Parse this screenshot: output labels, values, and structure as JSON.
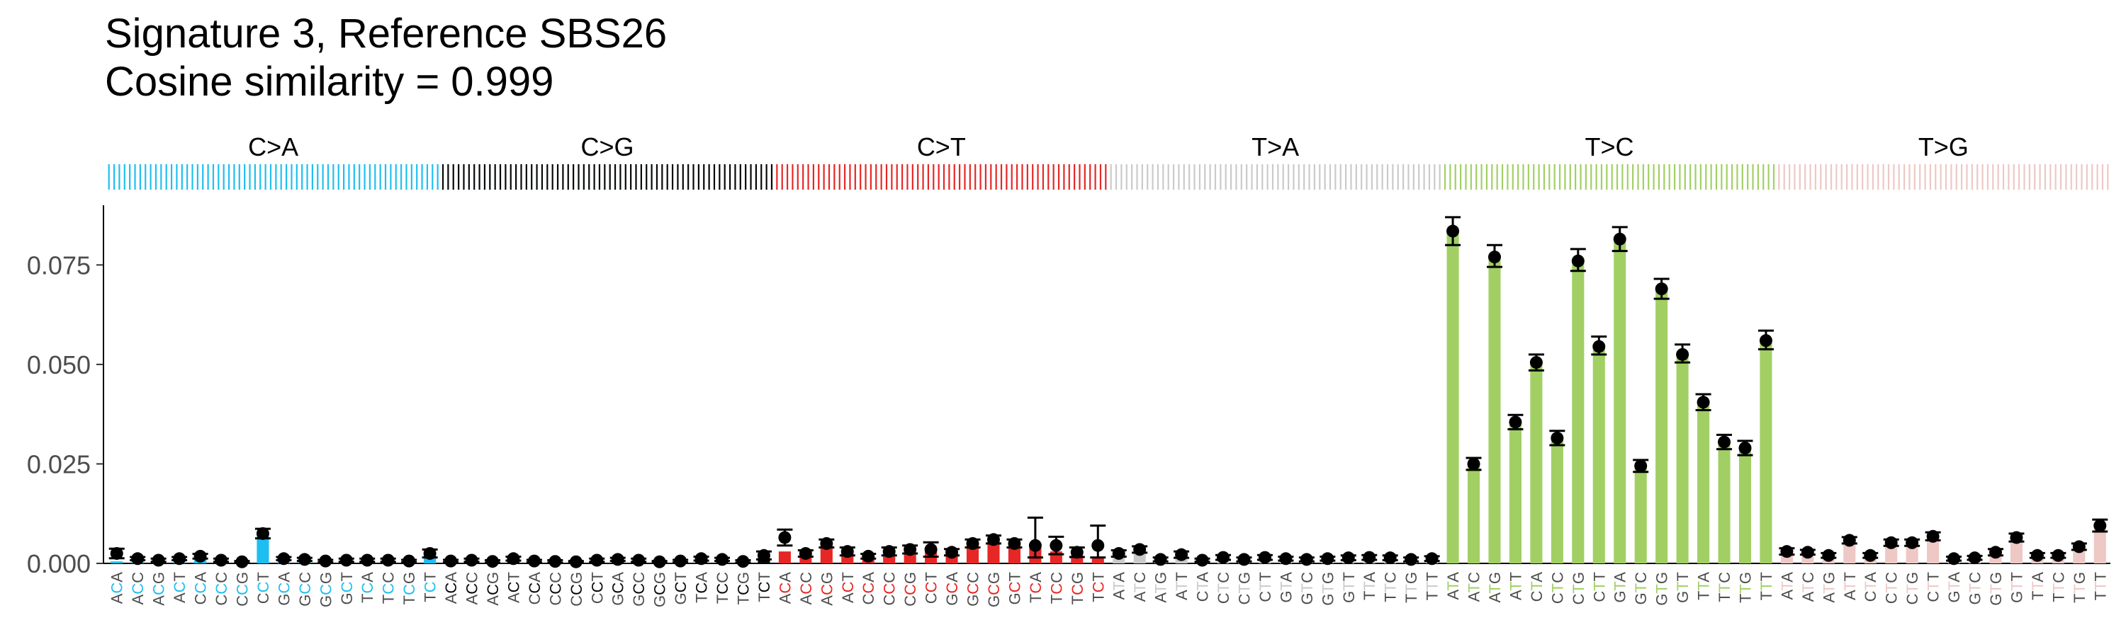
{
  "title": "Signature 3, Reference SBS26",
  "subtitle": "Cosine similarity = 0.999",
  "chart_data": {
    "type": "bar",
    "title": "Signature 3, Reference SBS26",
    "subtitle": "Cosine similarity = 0.999",
    "xlabel": "",
    "ylabel": "",
    "ylim": [
      0,
      0.09
    ],
    "yticks": [
      0.0,
      0.025,
      0.05,
      0.075
    ],
    "ytick_labels": [
      "0.000",
      "0.025",
      "0.050",
      "0.075"
    ],
    "grid": false,
    "groups": [
      {
        "label": "C>A",
        "color": "#1ebff0",
        "ref": "C"
      },
      {
        "label": "C>G",
        "color": "#050708",
        "ref": "C"
      },
      {
        "label": "C>T",
        "color": "#e62725",
        "ref": "C"
      },
      {
        "label": "T>A",
        "color": "#cbcacb",
        "ref": "T"
      },
      {
        "label": "T>C",
        "color": "#a1cf64",
        "ref": "T"
      },
      {
        "label": "T>G",
        "color": "#edc8c5",
        "ref": "T"
      }
    ],
    "contexts": [
      "A_A",
      "A_C",
      "A_G",
      "A_T",
      "C_A",
      "C_C",
      "C_G",
      "C_T",
      "G_A",
      "G_C",
      "G_G",
      "G_T",
      "T_A",
      "T_C",
      "T_G",
      "T_T"
    ],
    "tick_labels": [
      "ACA",
      "ACC",
      "ACG",
      "ACT",
      "CCA",
      "CCC",
      "CCG",
      "CCT",
      "GCA",
      "GCC",
      "GCG",
      "GCT",
      "TCA",
      "TCC",
      "TCG",
      "TCT",
      "ACA",
      "ACC",
      "ACG",
      "ACT",
      "CCA",
      "CCC",
      "CCG",
      "CCT",
      "GCA",
      "GCC",
      "GCG",
      "GCT",
      "TCA",
      "TCC",
      "TCG",
      "TCT",
      "ACA",
      "ACC",
      "ACG",
      "ACT",
      "CCA",
      "CCC",
      "CCG",
      "CCT",
      "GCA",
      "GCC",
      "GCG",
      "GCT",
      "TCA",
      "TCC",
      "TCG",
      "TCT",
      "ATA",
      "ATC",
      "ATG",
      "ATT",
      "CTA",
      "CTC",
      "CTG",
      "CTT",
      "GTA",
      "GTC",
      "GTG",
      "GTT",
      "TTA",
      "TTC",
      "TTG",
      "TTT",
      "ATA",
      "ATC",
      "ATG",
      "ATT",
      "CTA",
      "CTC",
      "CTG",
      "CTT",
      "GTA",
      "GTC",
      "GTG",
      "GTT",
      "TTA",
      "TTC",
      "TTG",
      "TTT",
      "ATA",
      "ATC",
      "ATG",
      "ATT",
      "CTA",
      "CTC",
      "CTG",
      "CTT",
      "GTA",
      "GTC",
      "GTG",
      "GTT",
      "TTA",
      "TTC",
      "TTG",
      "TTT"
    ],
    "series": [
      {
        "name": "Signature 3",
        "values": [
          0.0005,
          0.0008,
          0.0004,
          0.0008,
          0.0012,
          0.0006,
          0.0002,
          0.0072,
          0.0008,
          0.0006,
          0.0004,
          0.0005,
          0.0005,
          0.0004,
          0.0003,
          0.0022,
          0.0004,
          0.0005,
          0.0002,
          0.0006,
          0.0003,
          0.0002,
          0.0002,
          0.0004,
          0.0006,
          0.0004,
          0.0002,
          0.0003,
          0.0008,
          0.0005,
          0.0002,
          0.0011,
          0.003,
          0.002,
          0.0045,
          0.003,
          0.0015,
          0.0025,
          0.0028,
          0.0032,
          0.0025,
          0.005,
          0.0058,
          0.0048,
          0.004,
          0.003,
          0.002,
          0.0015,
          0.0015,
          0.0025,
          0.0006,
          0.0015,
          0.0005,
          0.001,
          0.0005,
          0.001,
          0.0008,
          0.0006,
          0.0008,
          0.0008,
          0.001,
          0.0008,
          0.0006,
          0.0008,
          0.083,
          0.025,
          0.077,
          0.0355,
          0.0505,
          0.0315,
          0.076,
          0.0545,
          0.0815,
          0.0245,
          0.069,
          0.0525,
          0.0405,
          0.0305,
          0.0285,
          0.0555,
          0.002,
          0.002,
          0.0015,
          0.0055,
          0.0015,
          0.005,
          0.005,
          0.0065,
          0.0008,
          0.001,
          0.0022,
          0.006,
          0.0015,
          0.0015,
          0.0035,
          0.009
        ]
      },
      {
        "name": "Reference SBS26",
        "values": [
          0.0025,
          0.0012,
          0.0008,
          0.0012,
          0.0018,
          0.0008,
          0.0004,
          0.0075,
          0.0012,
          0.001,
          0.0006,
          0.0008,
          0.0008,
          0.0008,
          0.0006,
          0.0025,
          0.0006,
          0.0008,
          0.0005,
          0.0012,
          0.0006,
          0.0005,
          0.0004,
          0.0008,
          0.001,
          0.0008,
          0.0004,
          0.0006,
          0.0012,
          0.001,
          0.0005,
          0.002,
          0.0065,
          0.0025,
          0.005,
          0.003,
          0.0018,
          0.003,
          0.0035,
          0.0035,
          0.0028,
          0.005,
          0.006,
          0.005,
          0.0045,
          0.0045,
          0.0028,
          0.0045,
          0.0025,
          0.0035,
          0.001,
          0.0022,
          0.0008,
          0.0015,
          0.001,
          0.0015,
          0.0012,
          0.001,
          0.0012,
          0.0014,
          0.0015,
          0.0014,
          0.001,
          0.0012,
          0.0835,
          0.025,
          0.077,
          0.0355,
          0.0505,
          0.0315,
          0.076,
          0.0545,
          0.0815,
          0.0245,
          0.069,
          0.0525,
          0.0405,
          0.0305,
          0.029,
          0.056,
          0.003,
          0.0028,
          0.002,
          0.0058,
          0.002,
          0.0052,
          0.0052,
          0.0068,
          0.0012,
          0.0014,
          0.0028,
          0.0065,
          0.002,
          0.002,
          0.0042,
          0.0095
        ],
        "error_low": [
          0.0012,
          0.0004,
          0.0004,
          0.0004,
          0.0006,
          0.0004,
          0.0002,
          0.0012,
          0.0004,
          0.0004,
          0.0003,
          0.0004,
          0.0004,
          0.0004,
          0.0003,
          0.001,
          0.0003,
          0.0004,
          0.0003,
          0.0005,
          0.0003,
          0.0003,
          0.0002,
          0.0004,
          0.0004,
          0.0004,
          0.0002,
          0.0003,
          0.0005,
          0.0004,
          0.0003,
          0.001,
          0.002,
          0.0008,
          0.001,
          0.001,
          0.0006,
          0.001,
          0.001,
          0.0018,
          0.0008,
          0.001,
          0.001,
          0.001,
          0.003,
          0.0022,
          0.0012,
          0.003,
          0.0008,
          0.0008,
          0.0005,
          0.0008,
          0.0004,
          0.0006,
          0.0005,
          0.0006,
          0.0005,
          0.0005,
          0.0005,
          0.0006,
          0.0006,
          0.0006,
          0.0005,
          0.0006,
          0.0035,
          0.0015,
          0.0025,
          0.0018,
          0.002,
          0.0018,
          0.0025,
          0.002,
          0.003,
          0.0015,
          0.0025,
          0.002,
          0.002,
          0.0018,
          0.0018,
          0.0022,
          0.0008,
          0.0006,
          0.0006,
          0.0008,
          0.0006,
          0.0008,
          0.0008,
          0.001,
          0.0005,
          0.0005,
          0.0008,
          0.001,
          0.0006,
          0.0006,
          0.0008,
          0.0015
        ],
        "error_high": [
          0.0012,
          0.0004,
          0.0004,
          0.0004,
          0.0006,
          0.0004,
          0.0002,
          0.0012,
          0.0004,
          0.0004,
          0.0003,
          0.0004,
          0.0004,
          0.0004,
          0.0003,
          0.001,
          0.0003,
          0.0004,
          0.0003,
          0.0005,
          0.0003,
          0.0003,
          0.0002,
          0.0004,
          0.0004,
          0.0004,
          0.0002,
          0.0003,
          0.0005,
          0.0004,
          0.0003,
          0.001,
          0.002,
          0.0008,
          0.001,
          0.001,
          0.0006,
          0.001,
          0.001,
          0.0018,
          0.0008,
          0.001,
          0.001,
          0.001,
          0.007,
          0.0022,
          0.0012,
          0.005,
          0.0008,
          0.0008,
          0.0005,
          0.0008,
          0.0004,
          0.0006,
          0.0005,
          0.0006,
          0.0005,
          0.0005,
          0.0005,
          0.0006,
          0.0006,
          0.0006,
          0.0005,
          0.0006,
          0.0035,
          0.0015,
          0.003,
          0.0018,
          0.002,
          0.0018,
          0.003,
          0.0025,
          0.003,
          0.0015,
          0.0025,
          0.0025,
          0.002,
          0.0018,
          0.0018,
          0.0025,
          0.0008,
          0.0006,
          0.0006,
          0.0008,
          0.0006,
          0.0008,
          0.0008,
          0.001,
          0.0005,
          0.0005,
          0.0008,
          0.001,
          0.0006,
          0.0006,
          0.0008,
          0.0015
        ]
      }
    ]
  }
}
